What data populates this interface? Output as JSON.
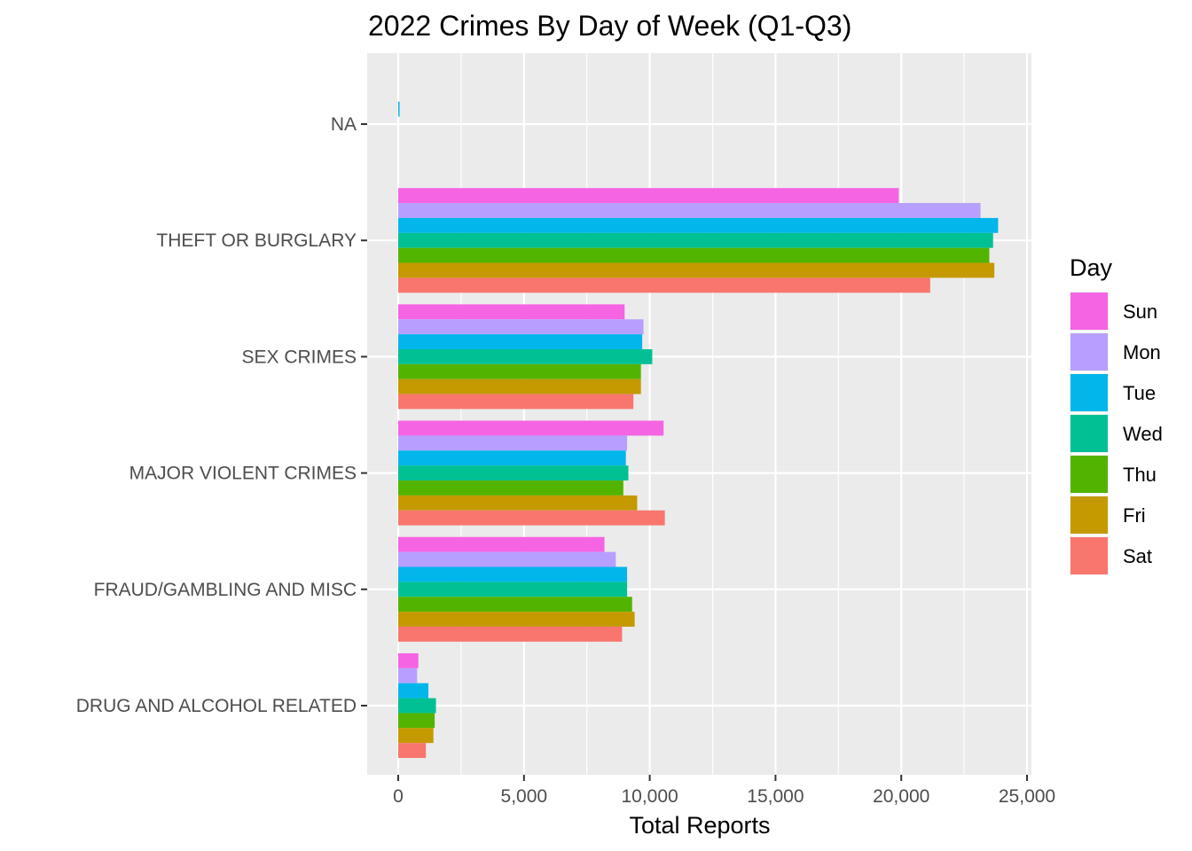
{
  "chart_data": {
    "type": "bar",
    "orientation": "horizontal",
    "title": "2022 Crimes By Day of Week (Q1-Q3)",
    "xlabel": "Total Reports",
    "ylabel": "",
    "xlim": [
      0,
      25000
    ],
    "x_ticks": [
      0,
      5000,
      10000,
      15000,
      20000,
      25000
    ],
    "x_tick_labels": [
      "0",
      "5,000",
      "10,000",
      "15,000",
      "20,000",
      "25,000"
    ],
    "grid": true,
    "legend": {
      "title": "Day",
      "placement": "right"
    },
    "categories": [
      "NA",
      "THEFT OR BURGLARY",
      "SEX CRIMES",
      "MAJOR VIOLENT CRIMES",
      "FRAUD/GAMBLING AND MISC",
      "DRUG AND ALCOHOL RELATED"
    ],
    "series": [
      {
        "name": "Sun",
        "color": "#F564E3",
        "values": [
          0,
          19900,
          9000,
          10550,
          8200,
          800
        ]
      },
      {
        "name": "Mon",
        "color": "#B79FFF",
        "values": [
          0,
          23150,
          9750,
          9100,
          8650,
          750
        ]
      },
      {
        "name": "Tue",
        "color": "#00B6EB",
        "values": [
          40,
          23850,
          9700,
          9050,
          9100,
          1200
        ]
      },
      {
        "name": "Wed",
        "color": "#00C094",
        "values": [
          0,
          23650,
          10100,
          9150,
          9100,
          1500
        ]
      },
      {
        "name": "Thu",
        "color": "#53B400",
        "values": [
          0,
          23500,
          9650,
          8950,
          9300,
          1450
        ]
      },
      {
        "name": "Fri",
        "color": "#C49A00",
        "values": [
          0,
          23700,
          9650,
          9500,
          9400,
          1400
        ]
      },
      {
        "name": "Sat",
        "color": "#F8766D",
        "values": [
          0,
          21150,
          9350,
          10600,
          8900,
          1100
        ]
      }
    ]
  },
  "colors": {
    "panel_background": "#EBEBEB",
    "grid_major": "#FFFFFF",
    "tick_text": "#4D4D4D"
  }
}
